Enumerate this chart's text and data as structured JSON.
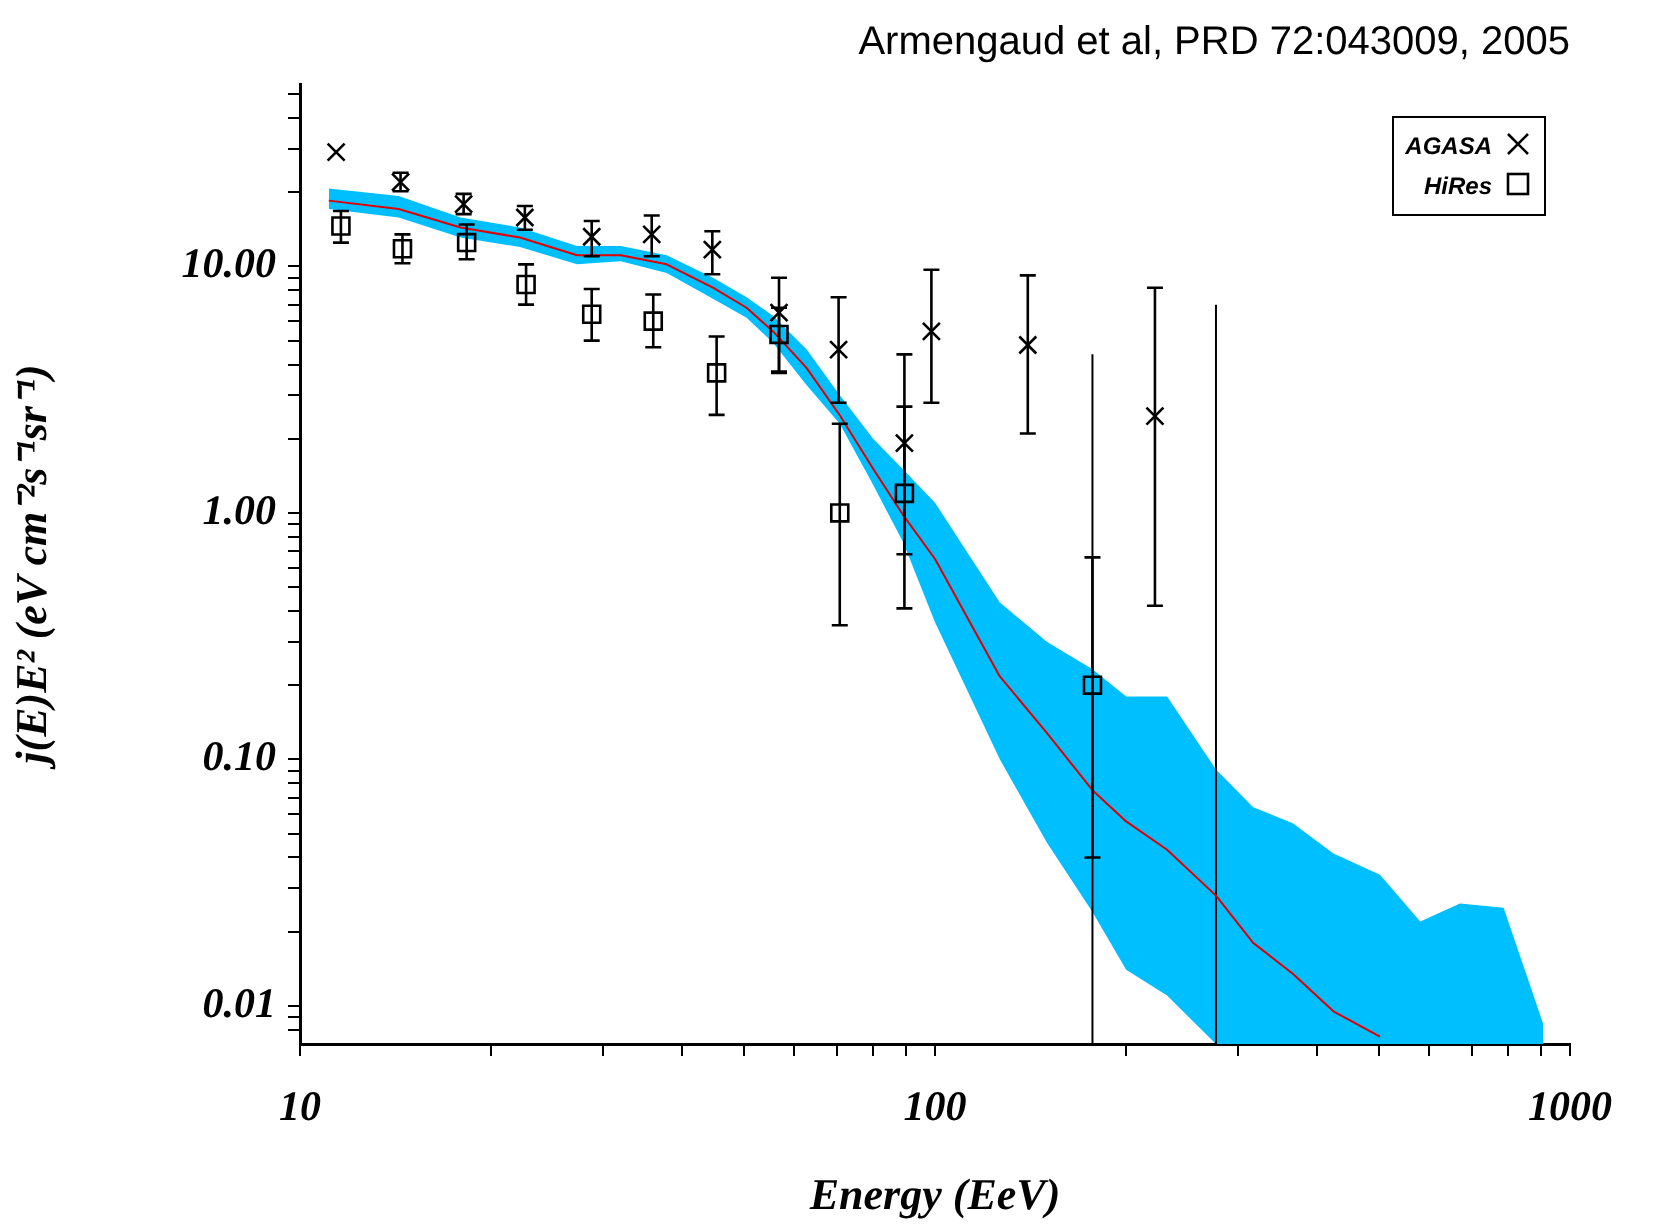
{
  "chart_data": {
    "type": "scatter",
    "xlabel": "Energy (EeV)",
    "ylabel": "j(E)E² (eV cm⁻²s⁻¹sr⁻¹)",
    "annotations": [
      "Armengaud et al, PRD 72:043009, 2005"
    ],
    "log": "xy",
    "legend": "top right",
    "xlim": [
      10,
      1000
    ],
    "ylim": [
      0.007,
      55
    ],
    "xticks": [
      10,
      {
        "value": 20,
        "label": null
      },
      {
        "value": 30,
        "label": null
      },
      {
        "value": 40,
        "label": null
      },
      {
        "value": 50,
        "label": null
      },
      {
        "value": 60,
        "label": null
      },
      {
        "value": 70,
        "label": null
      },
      {
        "value": 80,
        "label": null
      },
      {
        "value": 90,
        "label": null
      },
      100,
      {
        "value": 200,
        "label": null
      },
      {
        "value": 300,
        "label": null
      },
      {
        "value": 400,
        "label": null
      },
      {
        "value": 500,
        "label": null
      },
      {
        "value": 600,
        "label": null
      },
      {
        "value": 700,
        "label": null
      },
      {
        "value": 800,
        "label": null
      },
      {
        "value": 900,
        "label": null
      },
      1000
    ],
    "yticks": [
      {
        "value": 0.008,
        "label": null
      },
      {
        "value": 0.009,
        "label": null
      },
      {
        "value": 0.01,
        "label": "0.01"
      },
      {
        "value": 0.02,
        "label": null
      },
      {
        "value": 0.03,
        "label": null
      },
      {
        "value": 0.04,
        "label": null
      },
      {
        "value": 0.05,
        "label": null
      },
      {
        "value": 0.06,
        "label": null
      },
      {
        "value": 0.07,
        "label": null
      },
      {
        "value": 0.08,
        "label": null
      },
      {
        "value": 0.09,
        "label": null
      },
      {
        "value": 0.1,
        "label": "0.10"
      },
      {
        "value": 0.2,
        "label": null
      },
      {
        "value": 0.3,
        "label": null
      },
      {
        "value": 0.4,
        "label": null
      },
      {
        "value": 0.5,
        "label": null
      },
      {
        "value": 0.6,
        "label": null
      },
      {
        "value": 0.7,
        "label": null
      },
      {
        "value": 0.8,
        "label": null
      },
      {
        "value": 0.9,
        "label": null
      },
      {
        "value": 1,
        "label": "1.00"
      },
      {
        "value": 2,
        "label": null
      },
      {
        "value": 3,
        "label": null
      },
      {
        "value": 4,
        "label": null
      },
      {
        "value": 5,
        "label": null
      },
      {
        "value": 6,
        "label": null
      },
      {
        "value": 7,
        "label": null
      },
      {
        "value": 8,
        "label": null
      },
      {
        "value": 9,
        "label": null
      },
      {
        "value": 10,
        "label": "10.00"
      },
      {
        "value": 20,
        "label": null
      },
      {
        "value": 30,
        "label": null
      },
      {
        "value": 40,
        "label": null
      },
      {
        "value": 50,
        "label": null
      }
    ],
    "series": [
      {
        "type": "line",
        "color": "#e00000",
        "marker": "none",
        "x": [
          11.1,
          14.3,
          17.9,
          22.2,
          27.3,
          32,
          37.8,
          44.7,
          50.5,
          55.6,
          62.8,
          70.8,
          79.9,
          89.1,
          100,
          126.5,
          150,
          177,
          200,
          232,
          277,
          317,
          366,
          424,
          502,
          581,
          671,
          786,
          908
        ],
        "values": [
          18.5,
          17.1,
          14.4,
          13.1,
          11.1,
          11.1,
          10.2,
          8.2,
          6.8,
          5.45,
          3.87,
          2.49,
          1.51,
          0.98,
          0.65,
          0.217,
          0.128,
          0.075,
          0.056,
          0.043,
          0.028,
          0.018,
          0.0135,
          0.0095,
          0.0075,
          null,
          null,
          null,
          null
        ],
        "lower": [
          17.1,
          15.8,
          13.1,
          12.0,
          10.2,
          10.5,
          9.4,
          7.4,
          6.2,
          4.9,
          3.3,
          2.3,
          1.3,
          0.76,
          0.36,
          0.1,
          0.046,
          0.024,
          0.014,
          0.011,
          0.007,
          0.007,
          0.007,
          0.007,
          0.007,
          0.007,
          0.007,
          0.007,
          0.007
        ],
        "upper": [
          20.7,
          19.3,
          15.8,
          14.4,
          12.1,
          12.1,
          11.1,
          9.0,
          7.5,
          6.3,
          4.6,
          3.0,
          2.0,
          1.5,
          1.1,
          0.433,
          0.3,
          0.232,
          0.18,
          0.18,
          0.091,
          0.064,
          0.055,
          0.0415,
          0.034,
          0.022,
          0.026,
          0.025,
          0.0084
        ]
      },
      {
        "name": "AGASA",
        "color": "#000000",
        "marker": "cross",
        "x": [
          11.4,
          14.4,
          18.1,
          22.6,
          28.8,
          35.8,
          44.6,
          56.8,
          70.5,
          89.5,
          98.7,
          140,
          222
        ],
        "values": [
          29.1,
          22.0,
          17.9,
          15.8,
          13.2,
          13.5,
          11.7,
          6.5,
          4.6,
          1.92,
          5.45,
          4.8,
          2.47
        ],
        "errors": [
          null,
          [
            20.2,
            24.0
          ],
          [
            16.3,
            19.7
          ],
          [
            14.1,
            17.6
          ],
          [
            11.0,
            15.3
          ],
          [
            11.0,
            16.1
          ],
          [
            9.3,
            13.9
          ],
          [
            3.75,
            9.0
          ],
          [
            2.8,
            7.5
          ],
          [
            0.41,
            4.4
          ],
          [
            2.8,
            9.7
          ],
          [
            2.1,
            9.2
          ],
          [
            0.42,
            8.2
          ]
        ]
      },
      {
        "type": "line",
        "color": "#000000",
        "marker": "none",
        "x": [
          177,
          177
        ],
        "values": [
          0.007,
          4.4
        ]
      },
      {
        "type": "line",
        "color": "#000000",
        "marker": "none",
        "x": [
          277,
          277
        ],
        "values": [
          0.007,
          7.0
        ]
      },
      {
        "name": "HiRes",
        "color": "#000000",
        "marker": "square",
        "x": [
          11.6,
          14.5,
          18.3,
          22.7,
          28.8,
          36.0,
          45.3,
          56.8,
          70.8,
          89.5,
          177
        ],
        "values": [
          14.6,
          11.8,
          12.5,
          8.45,
          6.4,
          6.0,
          3.7,
          5.3,
          1.0,
          1.2,
          0.2
        ],
        "errors": [
          [
            12.5,
            16.8
          ],
          [
            10.3,
            13.5
          ],
          [
            10.7,
            14.8
          ],
          [
            7.0,
            10.2
          ],
          [
            5.0,
            8.1
          ],
          [
            4.7,
            7.7
          ],
          [
            2.5,
            5.2
          ],
          [
            3.7,
            6.8
          ],
          [
            0.35,
            2.3
          ],
          [
            0.68,
            2.7
          ],
          [
            0.04,
            0.66
          ]
        ]
      }
    ]
  }
}
